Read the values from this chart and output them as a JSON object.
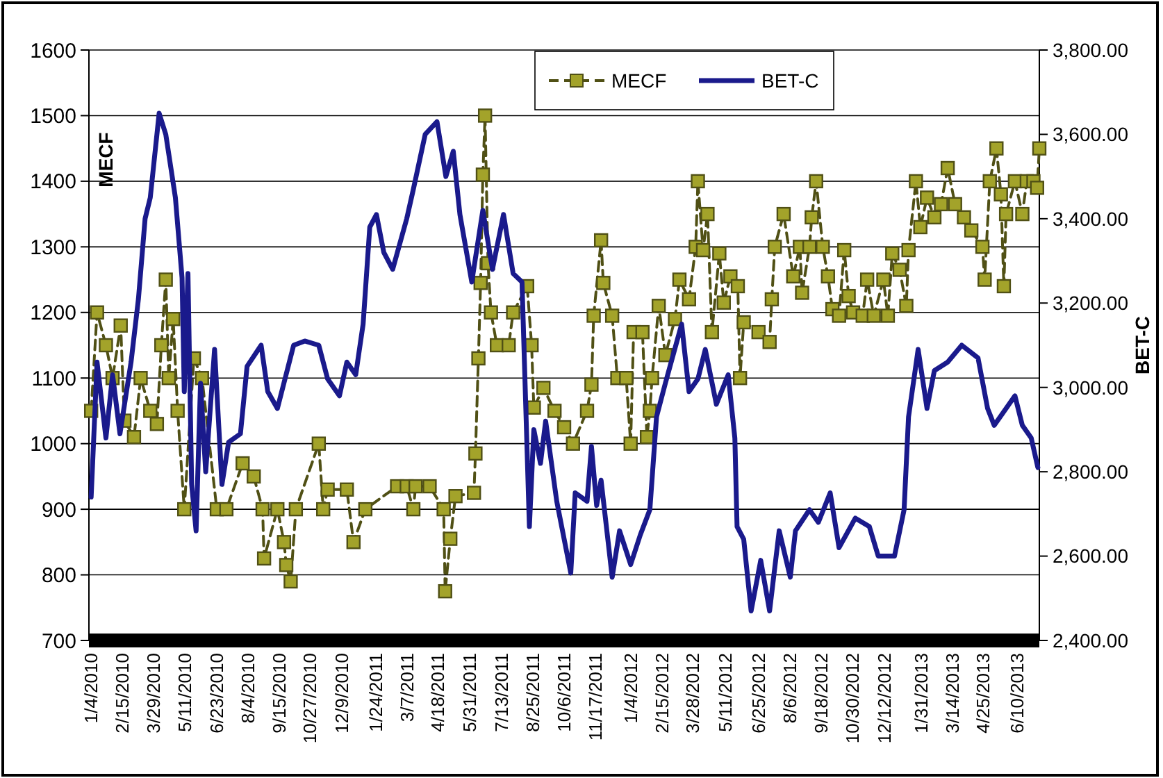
{
  "chart_data": {
    "type": "line",
    "ylabel": "MECF",
    "y2label": "BET-C",
    "xlim": [
      "2010-01-01",
      "2013-07-10"
    ],
    "xticks": [
      {
        "value": "2010-01-04",
        "label": "1/4/2010"
      },
      {
        "value": "2010-02-15",
        "label": "2/15/2010"
      },
      {
        "value": "2010-03-29",
        "label": "3/29/2010"
      },
      {
        "value": "2010-05-11",
        "label": "5/11/2010"
      },
      {
        "value": "2010-06-23",
        "label": "6/23/2010"
      },
      {
        "value": "2010-08-04",
        "label": "8/4/2010"
      },
      {
        "value": "2010-09-15",
        "label": "9/15/2010"
      },
      {
        "value": "2010-10-27",
        "label": "10/27/2010"
      },
      {
        "value": "2010-12-09",
        "label": "12/9/2010"
      },
      {
        "value": "2011-01-24",
        "label": "1/24/2011"
      },
      {
        "value": "2011-03-07",
        "label": "3/7/2011"
      },
      {
        "value": "2011-04-18",
        "label": "4/18/2011"
      },
      {
        "value": "2011-05-31",
        "label": "5/31/2011"
      },
      {
        "value": "2011-07-13",
        "label": "7/13/2011"
      },
      {
        "value": "2011-08-25",
        "label": "8/25/2011"
      },
      {
        "value": "2011-10-06",
        "label": "10/6/2011"
      },
      {
        "value": "2011-11-17",
        "label": "11/17/2011"
      },
      {
        "value": "2012-01-04",
        "label": "1/4/2012"
      },
      {
        "value": "2012-02-15",
        "label": "2/15/2012"
      },
      {
        "value": "2012-03-28",
        "label": "3/28/2012"
      },
      {
        "value": "2012-05-11",
        "label": "5/11/2012"
      },
      {
        "value": "2012-06-25",
        "label": "6/25/2012"
      },
      {
        "value": "2012-08-06",
        "label": "8/6/2012"
      },
      {
        "value": "2012-09-18",
        "label": "9/18/2012"
      },
      {
        "value": "2012-10-30",
        "label": "10/30/2012"
      },
      {
        "value": "2012-12-12",
        "label": "12/12/2012"
      },
      {
        "value": "2013-01-31",
        "label": "1/31/2013"
      },
      {
        "value": "2013-03-14",
        "label": "3/14/2013"
      },
      {
        "value": "2013-04-25",
        "label": "4/25/2013"
      },
      {
        "value": "2013-06-10",
        "label": "6/10/2013"
      }
    ],
    "ylim": [
      700,
      1600
    ],
    "yticks": [
      700,
      800,
      900,
      1000,
      1100,
      1200,
      1300,
      1400,
      1500,
      1600
    ],
    "y2lim": [
      2400,
      3800
    ],
    "y2ticks": [
      {
        "value": 2400,
        "label": "2,400.00"
      },
      {
        "value": 2600,
        "label": "2,600.00"
      },
      {
        "value": 2800,
        "label": "2,800.00"
      },
      {
        "value": 3000,
        "label": "3,000.00"
      },
      {
        "value": 3200,
        "label": "3,200.00"
      },
      {
        "value": 3400,
        "label": "3,400.00"
      },
      {
        "value": 3600,
        "label": "3,600.00"
      },
      {
        "value": 3800,
        "label": "3,800.00"
      }
    ],
    "grid": "y",
    "legend": "top",
    "series": [
      {
        "name": "MECF",
        "color": "#a3a32a",
        "marker": "square",
        "line_style": "dashed",
        "x": [
          "2010-01-04",
          "2010-01-12",
          "2010-01-24",
          "2010-02-02",
          "2010-02-13",
          "2010-02-18",
          "2010-03-03",
          "2010-03-12",
          "2010-03-25",
          "2010-04-03",
          "2010-04-09",
          "2010-04-15",
          "2010-04-19",
          "2010-04-25",
          "2010-05-01",
          "2010-05-10",
          "2010-05-23",
          "2010-06-03",
          "2010-06-23",
          "2010-07-06",
          "2010-07-28",
          "2010-08-12",
          "2010-08-24",
          "2010-08-26",
          "2010-09-13",
          "2010-09-22",
          "2010-09-25",
          "2010-10-01",
          "2010-10-08",
          "2010-11-08",
          "2010-11-14",
          "2010-11-20",
          "2010-12-16",
          "2010-12-25",
          "2011-01-10",
          "2011-02-22",
          "2011-03-07",
          "2011-03-16",
          "2011-03-19",
          "2011-04-07",
          "2011-04-26",
          "2011-04-28",
          "2011-05-05",
          "2011-05-12",
          "2011-06-06",
          "2011-06-08",
          "2011-06-12",
          "2011-06-15",
          "2011-06-18",
          "2011-06-21",
          "2011-06-25",
          "2011-06-29",
          "2011-07-07",
          "2011-07-23",
          "2011-07-29",
          "2011-08-17",
          "2011-08-23",
          "2011-08-26",
          "2011-09-08",
          "2011-09-23",
          "2011-10-06",
          "2011-10-18",
          "2011-11-06",
          "2011-11-12",
          "2011-11-15",
          "2011-11-25",
          "2011-11-28",
          "2011-12-10",
          "2011-12-17",
          "2011-12-29",
          "2012-01-04",
          "2012-01-08",
          "2012-01-20",
          "2012-01-26",
          "2012-01-30",
          "2012-02-02",
          "2012-02-11",
          "2012-02-20",
          "2012-03-04",
          "2012-03-10",
          "2012-03-23",
          "2012-04-01",
          "2012-04-04",
          "2012-04-11",
          "2012-04-17",
          "2012-04-23",
          "2012-05-03",
          "2012-05-09",
          "2012-05-18",
          "2012-05-28",
          "2012-05-31",
          "2012-06-05",
          "2012-06-25",
          "2012-07-10",
          "2012-07-13",
          "2012-07-17",
          "2012-07-29",
          "2012-08-11",
          "2012-08-20",
          "2012-08-23",
          "2012-09-02",
          "2012-09-05",
          "2012-09-11",
          "2012-09-20",
          "2012-09-27",
          "2012-10-03",
          "2012-10-12",
          "2012-10-19",
          "2012-10-25",
          "2012-10-31",
          "2012-11-13",
          "2012-11-19",
          "2012-11-28",
          "2012-12-11",
          "2012-12-17",
          "2012-12-23",
          "2013-01-02",
          "2013-01-11",
          "2013-01-14",
          "2013-01-24",
          "2013-01-30",
          "2013-02-08",
          "2013-02-18",
          "2013-02-27",
          "2013-03-08",
          "2013-03-18",
          "2013-03-30",
          "2013-04-09",
          "2013-04-24",
          "2013-04-27",
          "2013-05-04",
          "2013-05-13",
          "2013-05-19",
          "2013-05-23",
          "2013-05-26",
          "2013-06-07",
          "2013-06-17",
          "2013-06-23",
          "2013-07-02",
          "2013-07-07",
          "2013-07-10"
        ],
        "values": [
          1050,
          1200,
          1150,
          1100,
          1180,
          1035,
          1010,
          1100,
          1050,
          1030,
          1150,
          1250,
          1100,
          1190,
          1050,
          900,
          1130,
          1100,
          900,
          900,
          970,
          950,
          900,
          825,
          900,
          850,
          815,
          790,
          900,
          1000,
          900,
          930,
          930,
          850,
          900,
          935,
          935,
          900,
          935,
          935,
          900,
          775,
          855,
          920,
          925,
          985,
          1130,
          1245,
          1410,
          1500,
          1275,
          1200,
          1150,
          1150,
          1200,
          1240,
          1150,
          1055,
          1085,
          1050,
          1025,
          1000,
          1050,
          1090,
          1195,
          1310,
          1245,
          1195,
          1100,
          1100,
          1000,
          1170,
          1170,
          1010,
          1050,
          1100,
          1210,
          1135,
          1190,
          1250,
          1220,
          1300,
          1400,
          1295,
          1350,
          1170,
          1290,
          1215,
          1255,
          1240,
          1100,
          1185,
          1170,
          1155,
          1220,
          1300,
          1350,
          1255,
          1300,
          1230,
          1300,
          1345,
          1400,
          1300,
          1255,
          1205,
          1195,
          1295,
          1225,
          1200,
          1195,
          1250,
          1195,
          1250,
          1195,
          1290,
          1265,
          1210,
          1295,
          1400,
          1330,
          1375,
          1345,
          1365,
          1420,
          1365,
          1345,
          1325,
          1300,
          1250,
          1400,
          1450,
          1380,
          1240,
          1350,
          1400,
          1350,
          1400,
          1400,
          1390,
          1450
        ]
      },
      {
        "name": "BET-C",
        "color": "#1a1a8c",
        "marker": "none",
        "line_style": "solid",
        "axis": "y2",
        "x": [
          "2010-01-04",
          "2010-01-12",
          "2010-01-24",
          "2010-02-02",
          "2010-02-12",
          "2010-02-27",
          "2010-03-09",
          "2010-03-18",
          "2010-03-25",
          "2010-04-06",
          "2010-04-15",
          "2010-04-28",
          "2010-05-07",
          "2010-05-10",
          "2010-05-15",
          "2010-05-20",
          "2010-05-26",
          "2010-06-01",
          "2010-06-08",
          "2010-06-20",
          "2010-06-30",
          "2010-07-09",
          "2010-07-25",
          "2010-08-03",
          "2010-08-22",
          "2010-08-31",
          "2010-09-13",
          "2010-10-05",
          "2010-10-20",
          "2010-11-08",
          "2010-11-20",
          "2010-12-06",
          "2010-12-16",
          "2010-12-28",
          "2011-01-07",
          "2011-01-16",
          "2011-01-25",
          "2011-02-04",
          "2011-02-16",
          "2011-03-07",
          "2011-03-16",
          "2011-04-01",
          "2011-04-17",
          "2011-04-29",
          "2011-05-09",
          "2011-05-18",
          "2011-06-03",
          "2011-06-18",
          "2011-07-01",
          "2011-07-16",
          "2011-07-29",
          "2011-08-10",
          "2011-08-20",
          "2011-08-26",
          "2011-09-04",
          "2011-09-11",
          "2011-09-26",
          "2011-10-15",
          "2011-10-21",
          "2011-11-06",
          "2011-11-12",
          "2011-11-19",
          "2011-11-25",
          "2011-12-10",
          "2011-12-20",
          "2012-01-04",
          "2012-01-17",
          "2012-01-30",
          "2012-02-08",
          "2012-02-20",
          "2012-03-13",
          "2012-03-23",
          "2012-04-04",
          "2012-04-14",
          "2012-04-29",
          "2012-05-15",
          "2012-05-24",
          "2012-05-27",
          "2012-06-05",
          "2012-06-15",
          "2012-06-28",
          "2012-07-10",
          "2012-07-23",
          "2012-08-07",
          "2012-08-14",
          "2012-09-02",
          "2012-09-14",
          "2012-09-30",
          "2012-10-12",
          "2012-11-03",
          "2012-11-22",
          "2012-12-04",
          "2012-12-26",
          "2013-01-08",
          "2013-01-14",
          "2013-01-27",
          "2013-02-08",
          "2013-02-18",
          "2013-03-08",
          "2013-03-27",
          "2013-04-18",
          "2013-05-01",
          "2013-05-10",
          "2013-05-26",
          "2013-06-07",
          "2013-06-17",
          "2013-06-29",
          "2013-07-08"
        ],
        "values": [
          2740,
          3060,
          2880,
          3030,
          2890,
          3060,
          3210,
          3400,
          3450,
          3650,
          3600,
          3450,
          3260,
          2990,
          3270,
          2770,
          2660,
          3010,
          2800,
          3090,
          2770,
          2870,
          2890,
          3050,
          3100,
          2990,
          2950,
          3100,
          3110,
          3100,
          3020,
          2980,
          3060,
          3030,
          3150,
          3380,
          3410,
          3320,
          3280,
          3400,
          3470,
          3600,
          3630,
          3500,
          3560,
          3410,
          3250,
          3420,
          3280,
          3410,
          3270,
          3250,
          2670,
          2900,
          2820,
          2920,
          2730,
          2560,
          2750,
          2730,
          2860,
          2720,
          2780,
          2550,
          2660,
          2580,
          2650,
          2710,
          2930,
          3010,
          3150,
          2990,
          3020,
          3090,
          2960,
          3030,
          2880,
          2670,
          2640,
          2470,
          2590,
          2470,
          2660,
          2550,
          2660,
          2710,
          2680,
          2750,
          2620,
          2690,
          2670,
          2600,
          2600,
          2710,
          2930,
          3090,
          2950,
          3040,
          3060,
          3100,
          3070,
          2950,
          2910,
          2950,
          2980,
          2910,
          2880,
          2810
        ]
      }
    ]
  }
}
